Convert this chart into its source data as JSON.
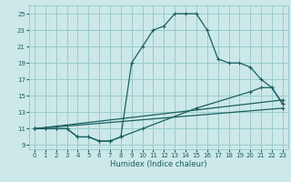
{
  "xlabel": "Humidex (Indice chaleur)",
  "bg_color": "#cce8e8",
  "grid_color": "#99cccc",
  "line_color": "#1a6060",
  "xlim": [
    -0.5,
    23.5
  ],
  "ylim": [
    8.5,
    26.0
  ],
  "xticks": [
    0,
    1,
    2,
    3,
    4,
    5,
    6,
    7,
    8,
    9,
    10,
    11,
    12,
    13,
    14,
    15,
    16,
    17,
    18,
    19,
    20,
    21,
    22,
    23
  ],
  "yticks": [
    9,
    11,
    13,
    15,
    17,
    19,
    21,
    23,
    25
  ],
  "curve1_x": [
    0,
    1,
    2,
    3,
    4,
    5,
    6,
    7,
    8,
    9,
    10,
    11,
    12,
    13,
    14,
    15,
    16,
    17,
    18,
    19,
    20,
    21,
    22,
    23
  ],
  "curve1_y": [
    11,
    11,
    11,
    11,
    10,
    10,
    9.5,
    9.5,
    10,
    19,
    21,
    23,
    23.5,
    25,
    25,
    25,
    23,
    19.5,
    19,
    19,
    18.5,
    17,
    16,
    14
  ],
  "curve2_x": [
    0,
    1,
    2,
    3,
    4,
    5,
    6,
    7,
    8,
    10,
    15,
    20,
    21,
    22,
    23
  ],
  "curve2_y": [
    11,
    11,
    11,
    11,
    10,
    10,
    9.5,
    9.5,
    10,
    11,
    13.5,
    15.5,
    16,
    16,
    14
  ],
  "curve3_x": [
    0,
    23
  ],
  "curve3_y": [
    11,
    14.5
  ],
  "curve4_x": [
    0,
    23
  ],
  "curve4_y": [
    11,
    13.5
  ]
}
